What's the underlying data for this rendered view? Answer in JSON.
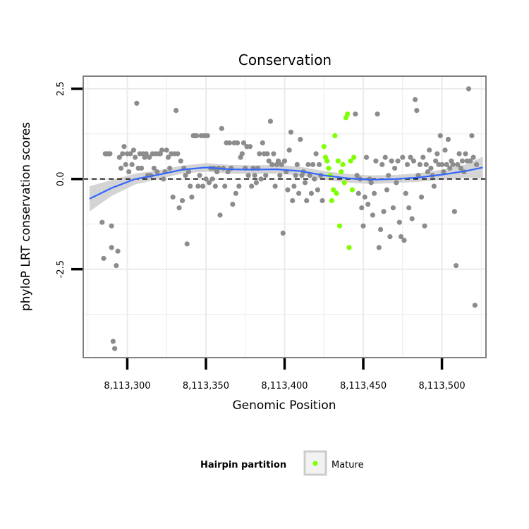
{
  "chart_data": {
    "type": "scatter",
    "title": "Conservation",
    "xlabel": "Genomic Position",
    "ylabel": "phyloP LRT conservation scores",
    "xlim": [
      8113272,
      8113528
    ],
    "ylim": [
      -4.95,
      2.85
    ],
    "x_ticks": [
      8113300,
      8113350,
      8113400,
      8113450,
      8113500
    ],
    "x_tick_labels": [
      "8,113,300",
      "8,113,350",
      "8,113,400",
      "8,113,450",
      "8,113,500"
    ],
    "y_ticks": [
      2.5,
      0.0,
      -2.5
    ],
    "y_tick_labels": [
      "2.5",
      "0.0",
      "-2.5"
    ],
    "reference_line": 0,
    "grid": true,
    "legend": {
      "title": "Hairpin partition",
      "position": "bottom",
      "entries": [
        {
          "label": "Mature",
          "color": "#7fff00"
        }
      ]
    },
    "colors": {
      "other": "#8c8c8c",
      "mature": "#7fff00",
      "smooth": "#3366ff",
      "ribbon": "#cccccc",
      "panel_border": "#7f7f7f",
      "grid": "#ebebeb"
    },
    "series": [
      {
        "name": "Other",
        "points": [
          [
            8113284,
            -1.2
          ],
          [
            8113285,
            -2.2
          ],
          [
            8113286,
            0.7
          ],
          [
            8113287,
            0.7
          ],
          [
            8113288,
            0.7
          ],
          [
            8113289,
            0.7
          ],
          [
            8113290,
            -1.3
          ],
          [
            8113290,
            -1.9
          ],
          [
            8113291,
            -4.5
          ],
          [
            8113292,
            -4.7
          ],
          [
            8113293,
            -2.4
          ],
          [
            8113294,
            -2.0
          ],
          [
            8113295,
            0.6
          ],
          [
            8113296,
            0.3
          ],
          [
            8113297,
            0.7
          ],
          [
            8113298,
            0.9
          ],
          [
            8113299,
            0.4
          ],
          [
            8113300,
            0.7
          ],
          [
            8113301,
            0.2
          ],
          [
            8113302,
            0.7
          ],
          [
            8113303,
            0.4
          ],
          [
            8113304,
            0.8
          ],
          [
            8113305,
            0.6
          ],
          [
            8113306,
            2.1
          ],
          [
            8113307,
            0.3
          ],
          [
            8113308,
            0.7
          ],
          [
            8113309,
            0.3
          ],
          [
            8113310,
            0.7
          ],
          [
            8113311,
            0.6
          ],
          [
            8113312,
            0.7
          ],
          [
            8113313,
            0.1
          ],
          [
            8113314,
            0.6
          ],
          [
            8113315,
            0.1
          ],
          [
            8113316,
            0.7
          ],
          [
            8113317,
            0.3
          ],
          [
            8113318,
            0.7
          ],
          [
            8113319,
            0.2
          ],
          [
            8113320,
            0.7
          ],
          [
            8113321,
            0.7
          ],
          [
            8113322,
            0.8
          ],
          [
            8113323,
            0.0
          ],
          [
            8113324,
            0.2
          ],
          [
            8113325,
            0.8
          ],
          [
            8113326,
            0.6
          ],
          [
            8113327,
            0.3
          ],
          [
            8113328,
            0.7
          ],
          [
            8113329,
            -0.5
          ],
          [
            8113330,
            0.7
          ],
          [
            8113331,
            1.9
          ],
          [
            8113332,
            0.7
          ],
          [
            8113333,
            -0.8
          ],
          [
            8113334,
            0.5
          ],
          [
            8113335,
            -0.6
          ],
          [
            8113336,
            0.3
          ],
          [
            8113337,
            0.1
          ],
          [
            8113338,
            -1.8
          ],
          [
            8113339,
            0.2
          ],
          [
            8113340,
            -0.2
          ],
          [
            8113341,
            -0.5
          ],
          [
            8113342,
            1.2
          ],
          [
            8113343,
            1.2
          ],
          [
            8113344,
            1.2
          ],
          [
            8113345,
            -0.2
          ],
          [
            8113346,
            0.1
          ],
          [
            8113347,
            1.2
          ],
          [
            8113348,
            -0.2
          ],
          [
            8113349,
            1.2
          ],
          [
            8113350,
            0.0
          ],
          [
            8113351,
            1.2
          ],
          [
            8113352,
            -0.1
          ],
          [
            8113353,
            0.3
          ],
          [
            8113354,
            0.0
          ],
          [
            8113355,
            0.3
          ],
          [
            8113356,
            -0.2
          ],
          [
            8113357,
            0.2
          ],
          [
            8113358,
            0.3
          ],
          [
            8113359,
            -1.0
          ],
          [
            8113360,
            1.4
          ],
          [
            8113361,
            0.3
          ],
          [
            8113362,
            -0.2
          ],
          [
            8113363,
            1.0
          ],
          [
            8113364,
            0.2
          ],
          [
            8113365,
            1.0
          ],
          [
            8113366,
            0.3
          ],
          [
            8113367,
            -0.7
          ],
          [
            8113368,
            1.0
          ],
          [
            8113369,
            -0.4
          ],
          [
            8113370,
            1.0
          ],
          [
            8113371,
            -0.2
          ],
          [
            8113372,
            0.6
          ],
          [
            8113373,
            0.7
          ],
          [
            8113374,
            1.0
          ],
          [
            8113375,
            0.3
          ],
          [
            8113376,
            0.9
          ],
          [
            8113377,
            0.1
          ],
          [
            8113378,
            0.9
          ],
          [
            8113379,
            -0.2
          ],
          [
            8113380,
            0.3
          ],
          [
            8113381,
            0.1
          ],
          [
            8113382,
            -0.1
          ],
          [
            8113383,
            0.3
          ],
          [
            8113384,
            0.7
          ],
          [
            8113385,
            0.0
          ],
          [
            8113386,
            1.0
          ],
          [
            8113387,
            0.7
          ],
          [
            8113388,
            0.1
          ],
          [
            8113389,
            0.7
          ],
          [
            8113390,
            0.5
          ],
          [
            8113391,
            1.6
          ],
          [
            8113392,
            0.4
          ],
          [
            8113393,
            0.7
          ],
          [
            8113394,
            -0.2
          ],
          [
            8113395,
            0.4
          ],
          [
            8113396,
            0.5
          ],
          [
            8113397,
            0.1
          ],
          [
            8113398,
            0.4
          ],
          [
            8113399,
            -1.5
          ],
          [
            8113400,
            0.5
          ],
          [
            8113401,
            0.2
          ],
          [
            8113402,
            -0.3
          ],
          [
            8113403,
            0.8
          ],
          [
            8113404,
            1.3
          ],
          [
            8113405,
            -0.6
          ],
          [
            8113406,
            -0.2
          ],
          [
            8113407,
            0.1
          ],
          [
            8113408,
            0.4
          ],
          [
            8113409,
            -0.4
          ],
          [
            8113410,
            1.1
          ],
          [
            8113411,
            0.1
          ],
          [
            8113412,
            0.2
          ],
          [
            8113413,
            -0.1
          ],
          [
            8113414,
            -0.6
          ],
          [
            8113415,
            0.4
          ],
          [
            8113416,
            0.1
          ],
          [
            8113417,
            -0.4
          ],
          [
            8113418,
            0.4
          ],
          [
            8113419,
            0.0
          ],
          [
            8113420,
            0.7
          ],
          [
            8113421,
            -0.3
          ],
          [
            8113422,
            0.4
          ],
          [
            8113423,
            0.1
          ],
          [
            8113424,
            -0.6
          ],
          [
            8113445,
            1.8
          ],
          [
            8113446,
            0.1
          ],
          [
            8113447,
            -0.4
          ],
          [
            8113448,
            0.0
          ],
          [
            8113449,
            -0.8
          ],
          [
            8113450,
            -1.3
          ],
          [
            8113451,
            -0.5
          ],
          [
            8113452,
            0.6
          ],
          [
            8113453,
            -0.7
          ],
          [
            8113454,
            0.0
          ],
          [
            8113455,
            -0.1
          ],
          [
            8113456,
            -1.0
          ],
          [
            8113457,
            -0.4
          ],
          [
            8113458,
            0.5
          ],
          [
            8113459,
            1.8
          ],
          [
            8113460,
            -1.9
          ],
          [
            8113461,
            -1.4
          ],
          [
            8113462,
            0.4
          ],
          [
            8113463,
            -0.9
          ],
          [
            8113464,
            0.6
          ],
          [
            8113465,
            -0.3
          ],
          [
            8113466,
            0.1
          ],
          [
            8113467,
            -1.6
          ],
          [
            8113468,
            0.5
          ],
          [
            8113469,
            -0.8
          ],
          [
            8113470,
            0.3
          ],
          [
            8113471,
            -0.1
          ],
          [
            8113472,
            0.5
          ],
          [
            8113473,
            -1.2
          ],
          [
            8113474,
            -1.6
          ],
          [
            8113475,
            0.6
          ],
          [
            8113476,
            -1.7
          ],
          [
            8113477,
            -0.4
          ],
          [
            8113478,
            0.4
          ],
          [
            8113479,
            -0.8
          ],
          [
            8113480,
            0.6
          ],
          [
            8113481,
            -1.1
          ],
          [
            8113482,
            0.5
          ],
          [
            8113483,
            2.2
          ],
          [
            8113484,
            1.9
          ],
          [
            8113485,
            0.1
          ],
          [
            8113486,
            0.4
          ],
          [
            8113487,
            -0.5
          ],
          [
            8113488,
            0.6
          ],
          [
            8113489,
            -1.3
          ],
          [
            8113490,
            0.4
          ],
          [
            8113491,
            0.2
          ],
          [
            8113492,
            0.8
          ],
          [
            8113493,
            0.3
          ],
          [
            8113494,
            0.1
          ],
          [
            8113495,
            -0.2
          ],
          [
            8113496,
            0.5
          ],
          [
            8113497,
            0.7
          ],
          [
            8113498,
            0.4
          ],
          [
            8113499,
            1.2
          ],
          [
            8113500,
            0.4
          ],
          [
            8113501,
            0.2
          ],
          [
            8113502,
            0.8
          ],
          [
            8113503,
            0.4
          ],
          [
            8113504,
            1.1
          ],
          [
            8113505,
            0.3
          ],
          [
            8113506,
            0.5
          ],
          [
            8113507,
            0.4
          ],
          [
            8113508,
            -0.9
          ],
          [
            8113509,
            -2.4
          ],
          [
            8113510,
            0.4
          ],
          [
            8113511,
            0.7
          ],
          [
            8113512,
            0.3
          ],
          [
            8113513,
            0.5
          ],
          [
            8113514,
            0.2
          ],
          [
            8113515,
            0.7
          ],
          [
            8113516,
            0.5
          ],
          [
            8113517,
            2.5
          ],
          [
            8113518,
            0.5
          ],
          [
            8113519,
            1.2
          ],
          [
            8113520,
            0.6
          ],
          [
            8113521,
            -3.5
          ],
          [
            8113522,
            0.4
          ]
        ]
      },
      {
        "name": "Mature",
        "points": [
          [
            8113425,
            0.9
          ],
          [
            8113426,
            0.6
          ],
          [
            8113427,
            0.5
          ],
          [
            8113428,
            0.3
          ],
          [
            8113429,
            0.1
          ],
          [
            8113430,
            -0.6
          ],
          [
            8113431,
            -0.3
          ],
          [
            8113432,
            1.2
          ],
          [
            8113433,
            -0.4
          ],
          [
            8113434,
            0.5
          ],
          [
            8113435,
            -1.3
          ],
          [
            8113436,
            0.2
          ],
          [
            8113437,
            0.4
          ],
          [
            8113438,
            -0.1
          ],
          [
            8113439,
            1.7
          ],
          [
            8113440,
            1.8
          ],
          [
            8113441,
            -1.9
          ],
          [
            8113442,
            0.5
          ],
          [
            8113443,
            -0.3
          ],
          [
            8113444,
            0.6
          ]
        ]
      }
    ],
    "smooth": {
      "method": "loess",
      "x": [
        8113276,
        8113290,
        8113305,
        8113320,
        8113335,
        8113350,
        8113365,
        8113380,
        8113395,
        8113410,
        8113425,
        8113440,
        8113455,
        8113470,
        8113485,
        8113500,
        8113515,
        8113526
      ],
      "y": [
        -0.55,
        -0.25,
        0.0,
        0.12,
        0.26,
        0.32,
        0.27,
        0.26,
        0.27,
        0.22,
        0.1,
        0.02,
        -0.02,
        0.0,
        0.04,
        0.12,
        0.22,
        0.32
      ],
      "ci_halfwidth": [
        0.35,
        0.22,
        0.15,
        0.12,
        0.11,
        0.12,
        0.12,
        0.12,
        0.12,
        0.12,
        0.12,
        0.12,
        0.12,
        0.11,
        0.12,
        0.14,
        0.18,
        0.3
      ]
    }
  }
}
